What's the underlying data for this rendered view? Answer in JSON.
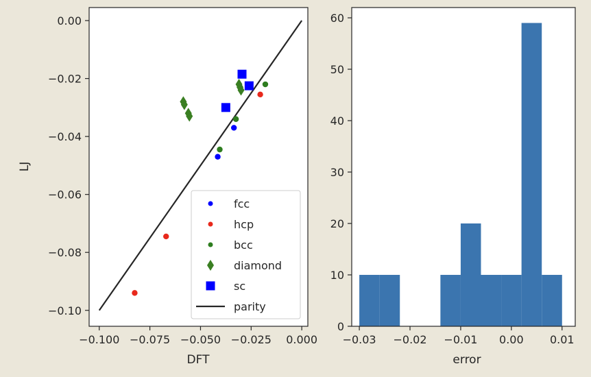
{
  "chart_data": [
    {
      "type": "scatter",
      "xlabel": "DFT",
      "ylabel": "LJ",
      "xlim": [
        -0.105,
        0.003
      ],
      "ylim": [
        -0.1055,
        0.0045
      ],
      "xticks": [
        -0.1,
        -0.075,
        -0.05,
        -0.025,
        0.0
      ],
      "xtick_labels": [
        "−0.100",
        "−0.075",
        "−0.050",
        "−0.025",
        "0.000"
      ],
      "yticks": [
        0.0,
        -0.02,
        -0.04,
        -0.06,
        -0.08,
        -0.1
      ],
      "ytick_labels": [
        "0.00",
        "−0.02",
        "−0.04",
        "−0.06",
        "−0.08",
        "−0.10"
      ],
      "grid": false,
      "legend_position": "bottom-right",
      "series": [
        {
          "name": "fcc",
          "marker": "dot",
          "color": "#0000ff",
          "points": [
            [
              -0.0415,
              -0.047
            ],
            [
              -0.0335,
              -0.037
            ]
          ]
        },
        {
          "name": "hcp",
          "marker": "dot",
          "color": "#e8291c",
          "points": [
            [
              -0.0825,
              -0.094
            ],
            [
              -0.067,
              -0.0745
            ],
            [
              -0.0205,
              -0.0255
            ]
          ]
        },
        {
          "name": "bcc",
          "marker": "dot",
          "color": "#2e7d1f",
          "points": [
            [
              -0.0405,
              -0.0445
            ],
            [
              -0.0325,
              -0.034
            ],
            [
              -0.018,
              -0.022
            ]
          ]
        },
        {
          "name": "diamond",
          "marker": "diamond",
          "color": "#3a7f22",
          "points": [
            [
              -0.0585,
              -0.028
            ],
            [
              -0.058,
              -0.029
            ],
            [
              -0.056,
              -0.032
            ],
            [
              -0.0555,
              -0.033
            ],
            [
              -0.031,
              -0.022
            ],
            [
              -0.0305,
              -0.023
            ],
            [
              -0.03,
              -0.024
            ]
          ]
        },
        {
          "name": "sc",
          "marker": "square",
          "color": "#0000ff",
          "points": [
            [
              -0.0375,
              -0.03
            ],
            [
              -0.0295,
              -0.0185
            ],
            [
              -0.026,
              -0.0225
            ]
          ]
        },
        {
          "name": "parity",
          "marker": "line",
          "color": "#262626",
          "line": [
            [
              -0.1,
              -0.1
            ],
            [
              0.0,
              0.0
            ]
          ]
        }
      ]
    },
    {
      "type": "bar",
      "xlabel": "error",
      "ylabel": "",
      "xlim": [
        -0.0315,
        0.0126
      ],
      "ylim": [
        0,
        62
      ],
      "xticks": [
        -0.03,
        -0.02,
        -0.01,
        0.0,
        0.01
      ],
      "xtick_labels": [
        "−0.03",
        "−0.02",
        "−0.01",
        "0.00",
        "0.01"
      ],
      "yticks": [
        0,
        10,
        20,
        30,
        40,
        50,
        60
      ],
      "ytick_labels": [
        "0",
        "10",
        "20",
        "30",
        "40",
        "50",
        "60"
      ],
      "grid": false,
      "color": "#3b75af",
      "bin_edges": [
        -0.03,
        -0.026,
        -0.022,
        -0.018,
        -0.014,
        -0.01,
        -0.006,
        -0.002,
        0.002,
        0.006,
        0.01
      ],
      "values": [
        10,
        10,
        0,
        0,
        10,
        20,
        10,
        10,
        59,
        10
      ]
    }
  ]
}
